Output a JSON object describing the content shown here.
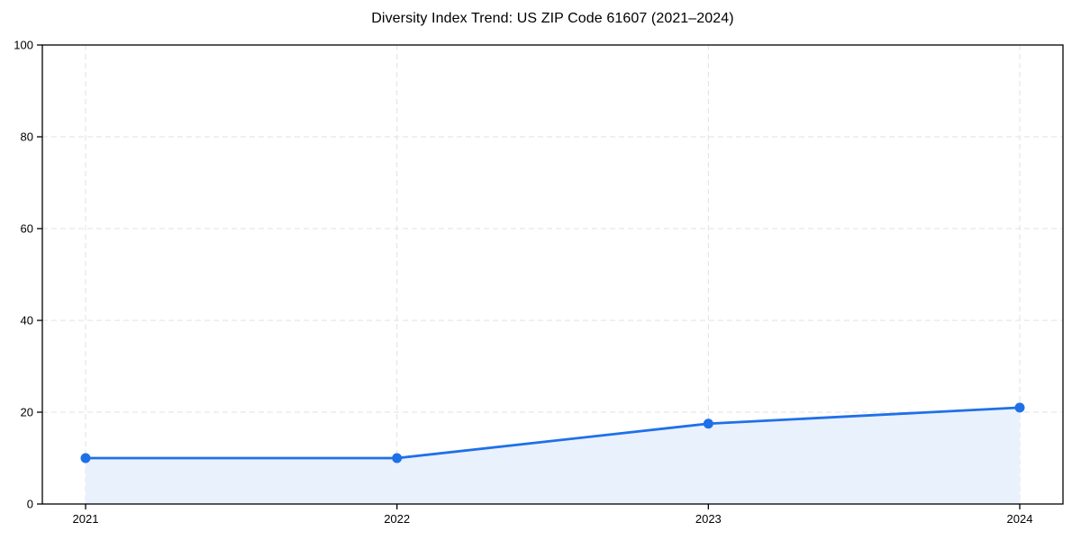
{
  "figure": {
    "title": "Diversity Index Trend: US ZIP Code 61607 (2021–2024)"
  },
  "chart_data": {
    "type": "area",
    "title": "Diversity Index Trend: US ZIP Code 61607 (2021–2024)",
    "series_name": "Diversity Index",
    "categories": [
      "2021",
      "2022",
      "2023",
      "2024"
    ],
    "values": [
      10,
      10,
      17.5,
      21
    ],
    "xlabel": "",
    "ylabel": "",
    "ylim": [
      0,
      100
    ],
    "yticks": [
      0,
      20,
      40,
      60,
      80,
      100
    ],
    "xticks": [
      "2021",
      "2022",
      "2023",
      "2024"
    ],
    "grid": "dashed, horizontal and vertical",
    "legend": "none",
    "marker": "circle",
    "colors": {
      "line": "#1f70e8",
      "marker": "#1f70e8",
      "fill": "#e9f1fd",
      "grid": "#e0e0e0",
      "spine": "#000000",
      "text": "#000000",
      "background": "#ffffff"
    }
  }
}
